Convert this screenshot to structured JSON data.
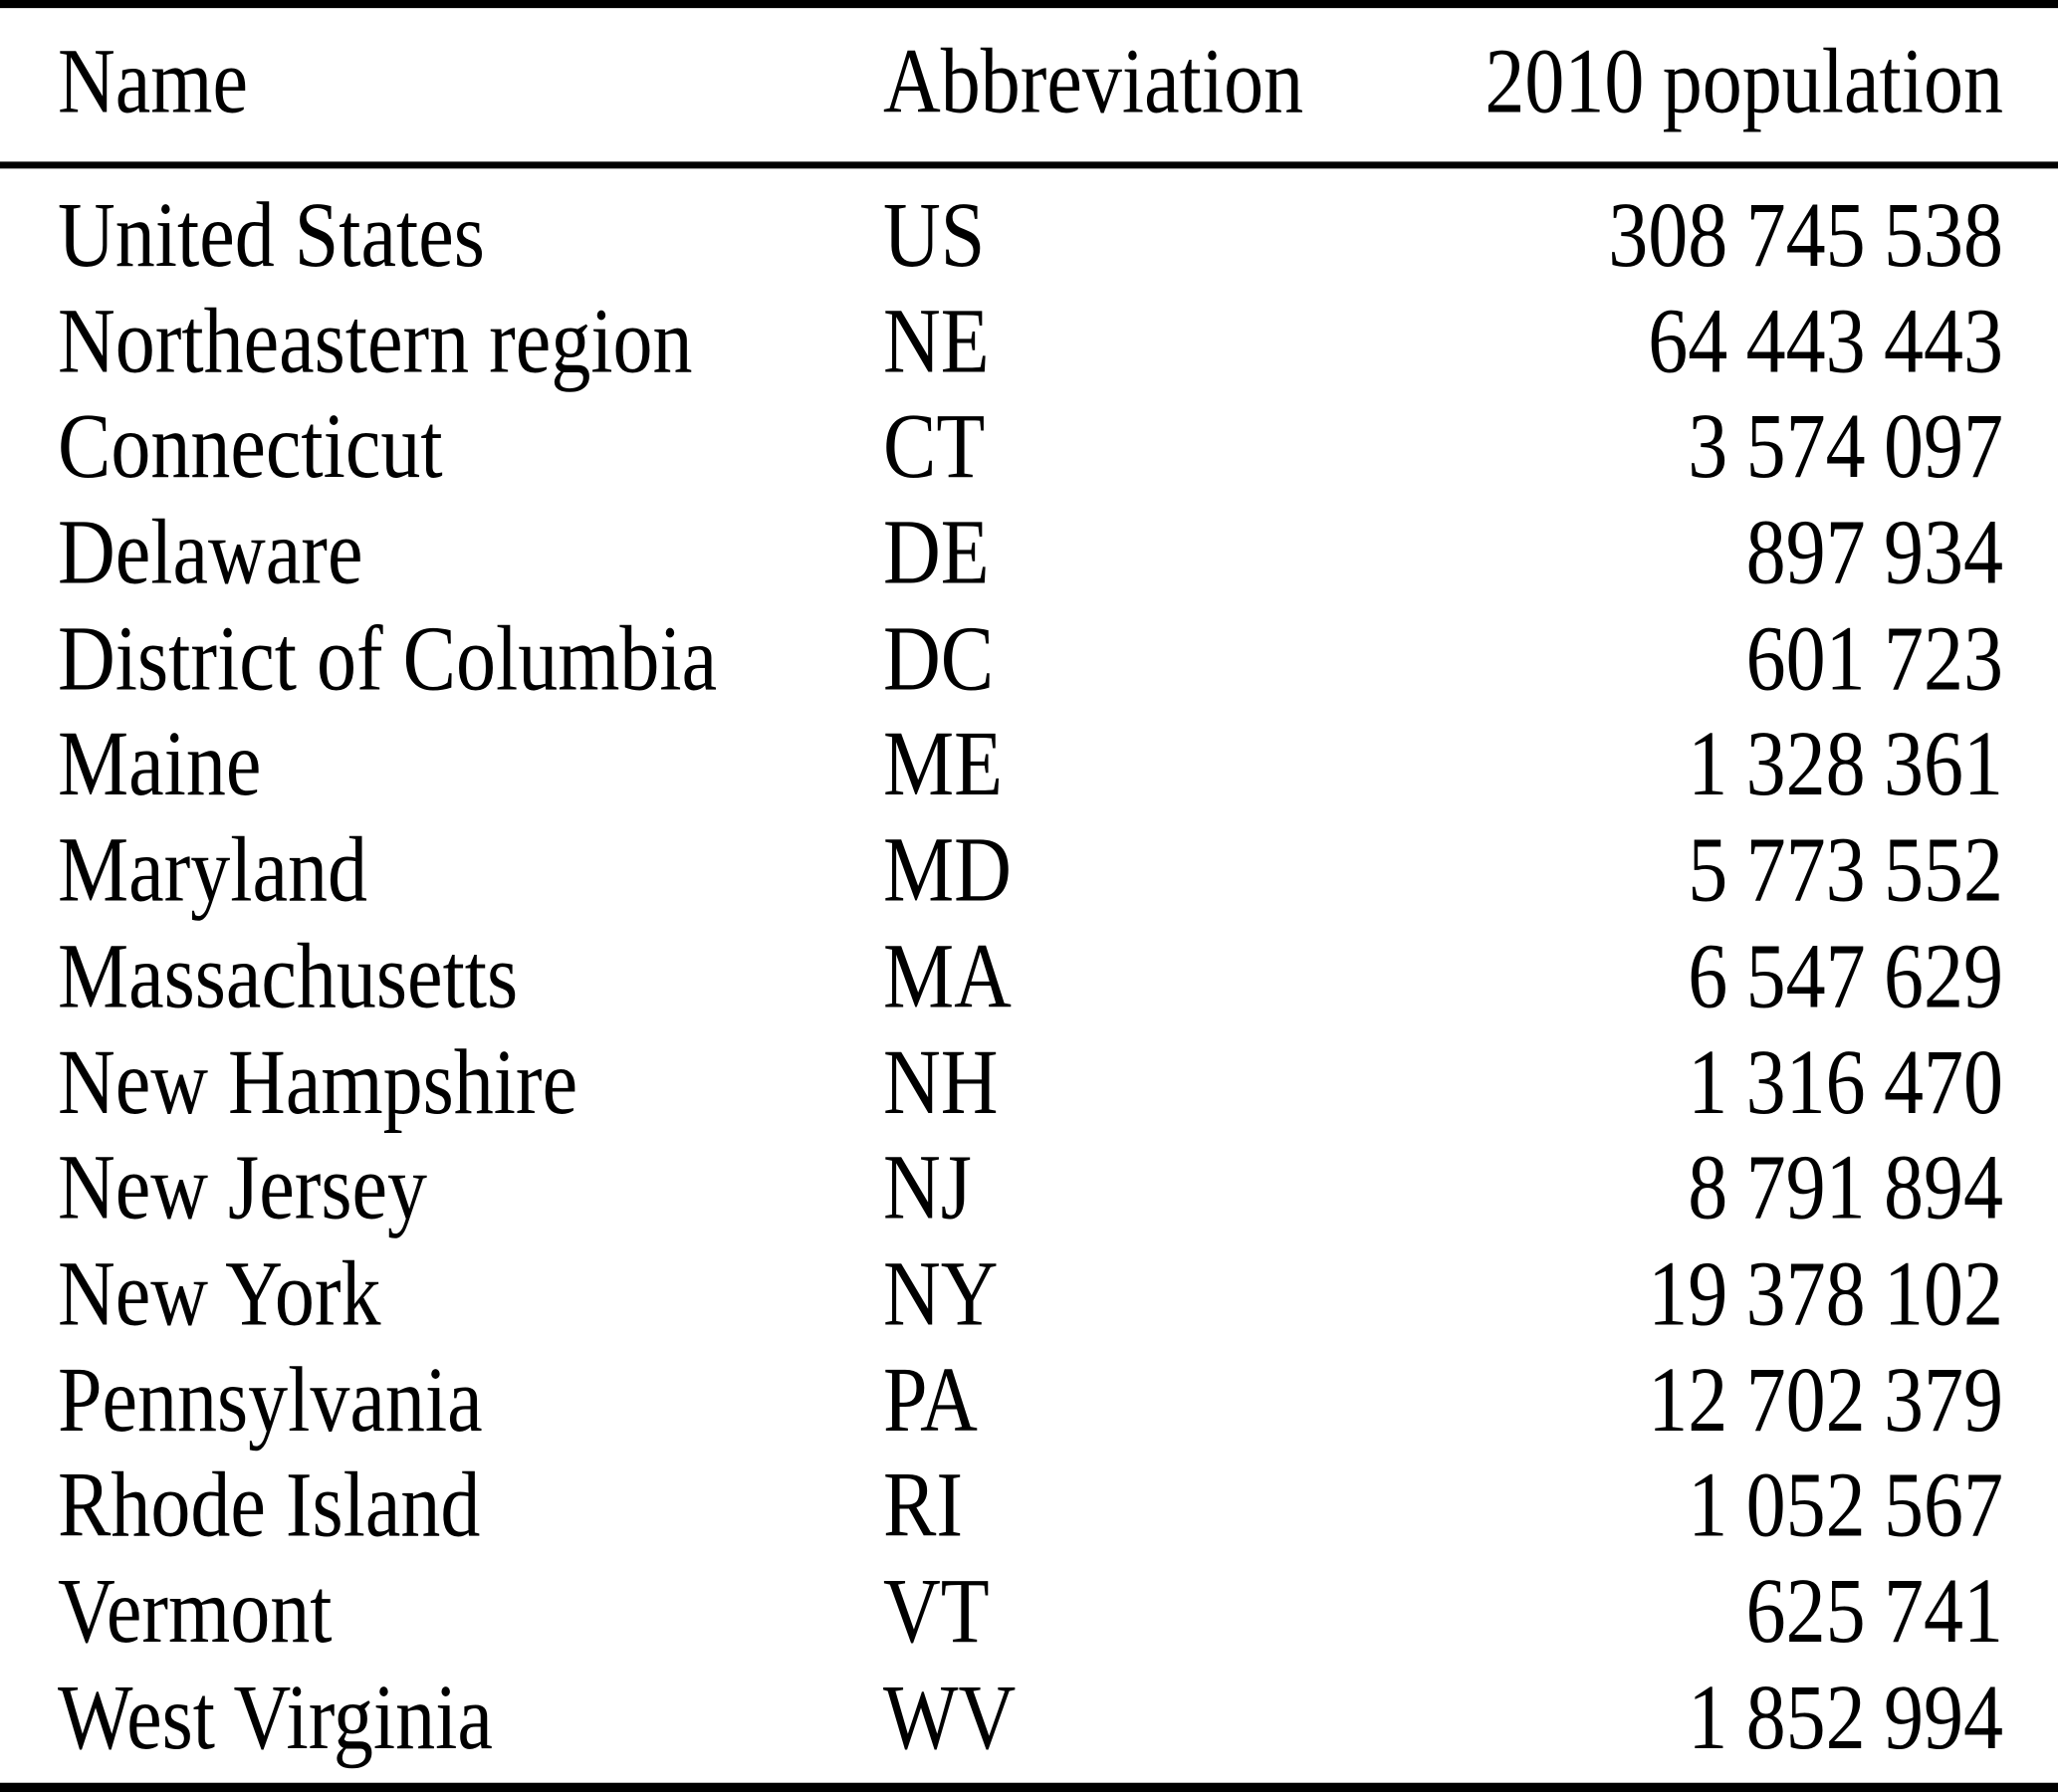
{
  "table": {
    "columns": [
      "Name",
      "Abbreviation",
      "2010 population"
    ],
    "rows": [
      {
        "name": "United States",
        "abbreviation": "US",
        "population": "308 745 538"
      },
      {
        "name": "Northeastern region",
        "abbreviation": "NE",
        "population": "64 443 443"
      },
      {
        "name": "Connecticut",
        "abbreviation": "CT",
        "population": "3 574 097"
      },
      {
        "name": "Delaware",
        "abbreviation": "DE",
        "population": "897 934"
      },
      {
        "name": "District of Columbia",
        "abbreviation": "DC",
        "population": "601 723"
      },
      {
        "name": "Maine",
        "abbreviation": "ME",
        "population": "1 328 361"
      },
      {
        "name": "Maryland",
        "abbreviation": "MD",
        "population": "5 773 552"
      },
      {
        "name": "Massachusetts",
        "abbreviation": "MA",
        "population": "6 547 629"
      },
      {
        "name": "New Hampshire",
        "abbreviation": "NH",
        "population": "1 316 470"
      },
      {
        "name": "New Jersey",
        "abbreviation": "NJ",
        "population": "8 791 894"
      },
      {
        "name": "New York",
        "abbreviation": "NY",
        "population": "19 378 102"
      },
      {
        "name": "Pennsylvania",
        "abbreviation": "PA",
        "population": "12 702 379"
      },
      {
        "name": "Rhode Island",
        "abbreviation": "RI",
        "population": "1 052 567"
      },
      {
        "name": "Vermont",
        "abbreviation": "VT",
        "population": "625 741"
      },
      {
        "name": "West Virginia",
        "abbreviation": "WV",
        "population": "1 852 994"
      }
    ],
    "text_color": "#000000",
    "background_color": "#ffffff"
  }
}
